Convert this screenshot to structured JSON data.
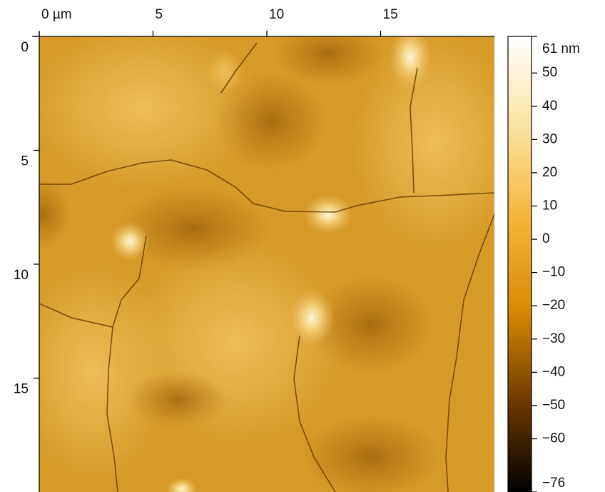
{
  "chart_data": {
    "type": "heatmap",
    "xlim": [
      0,
      20
    ],
    "xticks": [
      {
        "value": 0,
        "label": "0 µm"
      },
      5,
      10,
      15
    ],
    "ylim": [
      0,
      20
    ],
    "yticks": [
      0,
      5,
      10,
      15
    ],
    "zlim": [
      -76,
      61
    ],
    "zticks": [
      {
        "value": 61,
        "label": "61 nm"
      },
      50,
      40,
      30,
      20,
      10,
      0,
      {
        "value": -10,
        "label": "−10"
      },
      {
        "value": -20,
        "label": "−20"
      },
      {
        "value": -30,
        "label": "−30"
      },
      {
        "value": -40,
        "label": "−40"
      },
      {
        "value": -50,
        "label": "−50"
      },
      {
        "value": -60,
        "label": "−60"
      },
      {
        "value": -76,
        "label": "−76"
      }
    ],
    "colormap": [
      "#000000",
      "#6e3a00",
      "#d98a05",
      "#f4b53a",
      "#fbe3a0",
      "#ffffff"
    ]
  }
}
